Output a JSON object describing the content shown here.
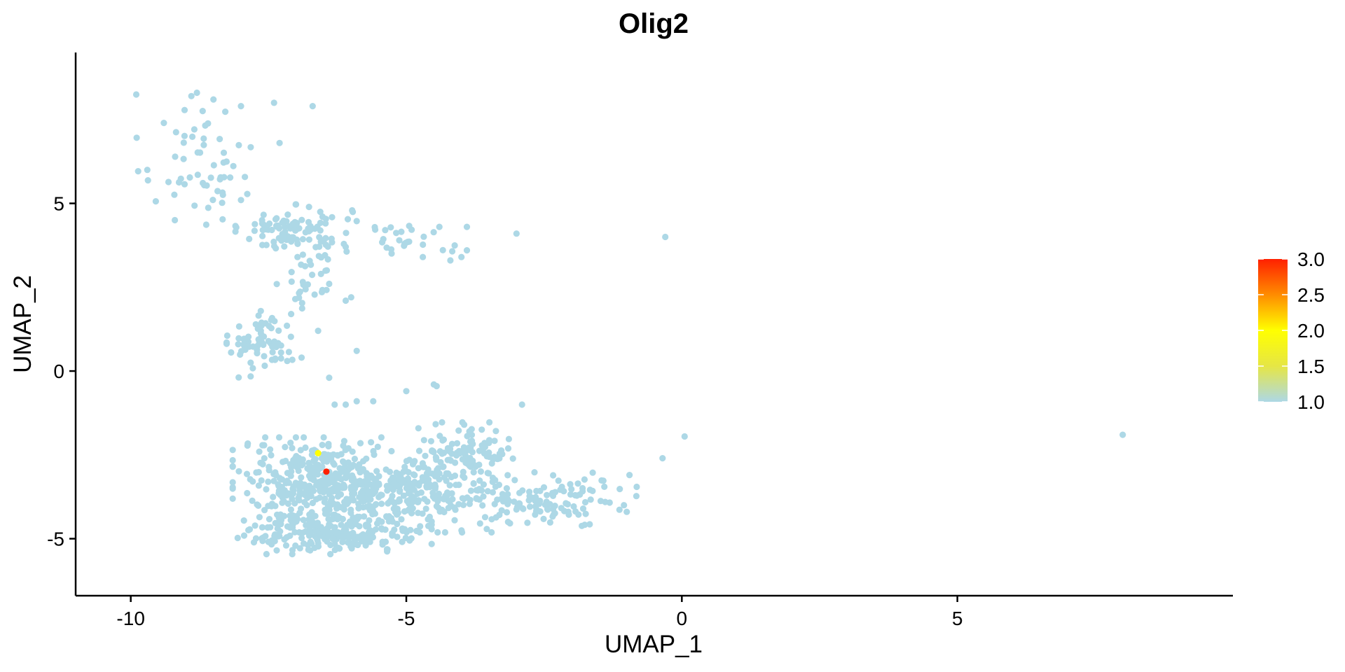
{
  "chart_data": {
    "type": "scatter",
    "title": "Olig2",
    "xlabel": "UMAP_1",
    "ylabel": "UMAP_2",
    "xlim": [
      -11,
      10
    ],
    "ylim": [
      -6.7,
      9.5
    ],
    "x_ticks": [
      -10,
      -5,
      0,
      5
    ],
    "x_tick_labels": [
      "-10",
      "-5",
      "0",
      "5"
    ],
    "y_ticks": [
      -5,
      0,
      5
    ],
    "y_tick_labels": [
      "-5",
      "0",
      "5"
    ],
    "grid": false,
    "legend": {
      "placement": "right",
      "min": 1.0,
      "max": 3.0,
      "ticks": [
        1.0,
        1.5,
        2.0,
        2.5,
        3.0
      ],
      "tick_labels": [
        "1.0",
        "1.5",
        "2.0",
        "2.5",
        "3.0"
      ],
      "colors": [
        "#add8e6",
        "#e6e645",
        "#ffff00",
        "#ff8c00",
        "#ff2000"
      ]
    },
    "base_color": "#add8e6",
    "clusters": [
      {
        "cx": -8.8,
        "cy": 6.3,
        "sx": 0.5,
        "sy": 1.0,
        "n": 55
      },
      {
        "cx": -7.0,
        "cy": 4.2,
        "sx": 0.5,
        "sy": 0.35,
        "n": 100
      },
      {
        "cx": -6.8,
        "cy": 2.8,
        "sx": 0.25,
        "sy": 0.5,
        "n": 30
      },
      {
        "cx": -7.6,
        "cy": 0.8,
        "sx": 0.3,
        "sy": 0.45,
        "n": 70
      },
      {
        "cx": -5.0,
        "cy": 4.0,
        "sx": 0.4,
        "sy": 0.25,
        "n": 25
      },
      {
        "cx": -6.5,
        "cy": -3.3,
        "sx": 0.75,
        "sy": 0.6,
        "n": 380
      },
      {
        "cx": -6.3,
        "cy": -4.8,
        "sx": 0.8,
        "sy": 0.3,
        "n": 230
      },
      {
        "cx": -4.7,
        "cy": -3.6,
        "sx": 0.7,
        "sy": 0.55,
        "n": 250
      },
      {
        "cx": -3.9,
        "cy": -2.3,
        "sx": 0.4,
        "sy": 0.35,
        "n": 90
      },
      {
        "cx": -2.6,
        "cy": -3.9,
        "sx": 0.55,
        "sy": 0.4,
        "n": 90
      },
      {
        "cx": -1.5,
        "cy": -3.8,
        "sx": 0.35,
        "sy": 0.35,
        "n": 20
      }
    ],
    "points": [
      {
        "x": -9.7,
        "y": 6.0
      },
      {
        "x": -9.4,
        "y": 7.4
      },
      {
        "x": -9.2,
        "y": 4.5
      },
      {
        "x": -8.9,
        "y": 8.2
      },
      {
        "x": -8.8,
        "y": 8.3
      },
      {
        "x": -8.5,
        "y": 8.1
      },
      {
        "x": -8.0,
        "y": 7.9
      },
      {
        "x": -7.4,
        "y": 8.0
      },
      {
        "x": -6.7,
        "y": 7.9
      },
      {
        "x": -7.3,
        "y": 6.8
      },
      {
        "x": -8.0,
        "y": 5.1
      },
      {
        "x": -6.1,
        "y": 3.7
      },
      {
        "x": -6.0,
        "y": 2.2
      },
      {
        "x": -6.1,
        "y": 2.1
      },
      {
        "x": -6.4,
        "y": 2.6
      },
      {
        "x": -6.6,
        "y": 1.2
      },
      {
        "x": -6.9,
        "y": 0.4
      },
      {
        "x": -5.9,
        "y": 0.6
      },
      {
        "x": -6.4,
        "y": -0.2
      },
      {
        "x": -6.3,
        "y": -1.0
      },
      {
        "x": -6.1,
        "y": -1.0
      },
      {
        "x": -5.9,
        "y": -0.9
      },
      {
        "x": -5.6,
        "y": -0.9
      },
      {
        "x": -5.0,
        "y": -0.6
      },
      {
        "x": -4.5,
        "y": -0.4
      },
      {
        "x": -4.45,
        "y": -0.45
      },
      {
        "x": -3.9,
        "y": 4.3
      },
      {
        "x": -4.4,
        "y": 4.3
      },
      {
        "x": -4.0,
        "y": 3.4
      },
      {
        "x": -3.9,
        "y": 3.6
      },
      {
        "x": -4.2,
        "y": 3.3
      },
      {
        "x": -4.7,
        "y": 3.4
      },
      {
        "x": -3.0,
        "y": 4.1
      },
      {
        "x": -0.3,
        "y": 4.0
      },
      {
        "x": -2.9,
        "y": -1.0
      },
      {
        "x": 0.05,
        "y": -1.95
      },
      {
        "x": -0.35,
        "y": -2.6
      },
      {
        "x": -0.95,
        "y": -3.1
      },
      {
        "x": -1.0,
        "y": -4.2
      },
      {
        "x": -1.05,
        "y": -4.0
      },
      {
        "x": 8.0,
        "y": -1.9
      }
    ],
    "highlights": [
      {
        "x": -6.6,
        "y": -2.45,
        "value": 2.0
      },
      {
        "x": -6.45,
        "y": -3.0,
        "value": 3.0
      }
    ]
  }
}
